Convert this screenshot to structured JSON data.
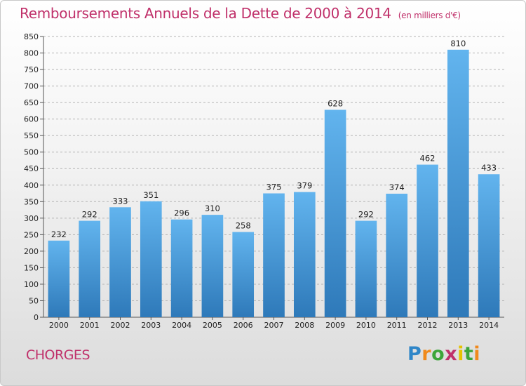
{
  "header": {
    "title": "Remboursements Annuels de la Dette de 2000 à 2014",
    "unit": "(en milliers d'€)"
  },
  "footer": {
    "commune": "CHORGES",
    "logo": "Proxiti"
  },
  "colors": {
    "title": "#c0306a",
    "bar_top": "#62b4ee",
    "bar_bottom": "#2e79b9",
    "grid": "#b4b4b4"
  },
  "chart_data": {
    "type": "bar",
    "title": "Remboursements Annuels de la Dette de 2000 à 2014",
    "subtitle": "(en milliers d'€)",
    "xlabel": "",
    "ylabel": "",
    "categories": [
      "2000",
      "2001",
      "2002",
      "2003",
      "2004",
      "2005",
      "2006",
      "2007",
      "2008",
      "2009",
      "2010",
      "2011",
      "2012",
      "2013",
      "2014"
    ],
    "values": [
      232,
      292,
      333,
      351,
      296,
      310,
      258,
      375,
      379,
      628,
      292,
      374,
      462,
      810,
      433
    ],
    "ylim": [
      0,
      850
    ],
    "ytick_step": 50,
    "grid": true,
    "grid_style": "dashed horizontal",
    "data_labels": true,
    "legend": "none"
  }
}
